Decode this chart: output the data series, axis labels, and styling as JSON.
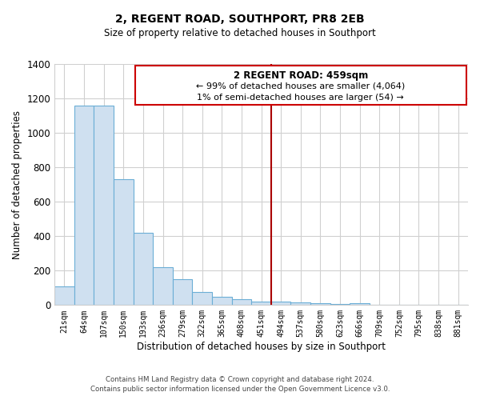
{
  "title": "2, REGENT ROAD, SOUTHPORT, PR8 2EB",
  "subtitle": "Size of property relative to detached houses in Southport",
  "xlabel": "Distribution of detached houses by size in Southport",
  "ylabel": "Number of detached properties",
  "bar_labels": [
    "21sqm",
    "64sqm",
    "107sqm",
    "150sqm",
    "193sqm",
    "236sqm",
    "279sqm",
    "322sqm",
    "365sqm",
    "408sqm",
    "451sqm",
    "494sqm",
    "537sqm",
    "580sqm",
    "623sqm",
    "666sqm",
    "709sqm",
    "752sqm",
    "795sqm",
    "838sqm",
    "881sqm"
  ],
  "bar_values": [
    107,
    1160,
    1160,
    730,
    420,
    220,
    150,
    75,
    50,
    35,
    20,
    18,
    15,
    12,
    5,
    12,
    3,
    0,
    0,
    0,
    0
  ],
  "bar_color": "#cfe0f0",
  "bar_edge_color": "#6baed6",
  "vline_x_index": 10,
  "vline_color": "#aa0000",
  "annotation_title": "2 REGENT ROAD: 459sqm",
  "annotation_line1": "← 99% of detached houses are smaller (4,064)",
  "annotation_line2": "1% of semi-detached houses are larger (54) →",
  "annotation_box_color": "#cc0000",
  "ylim": [
    0,
    1400
  ],
  "yticks": [
    0,
    200,
    400,
    600,
    800,
    1000,
    1200,
    1400
  ],
  "footer_line1": "Contains HM Land Registry data © Crown copyright and database right 2024.",
  "footer_line2": "Contains public sector information licensed under the Open Government Licence v3.0.",
  "background_color": "#ffffff",
  "grid_color": "#d0d0d0"
}
